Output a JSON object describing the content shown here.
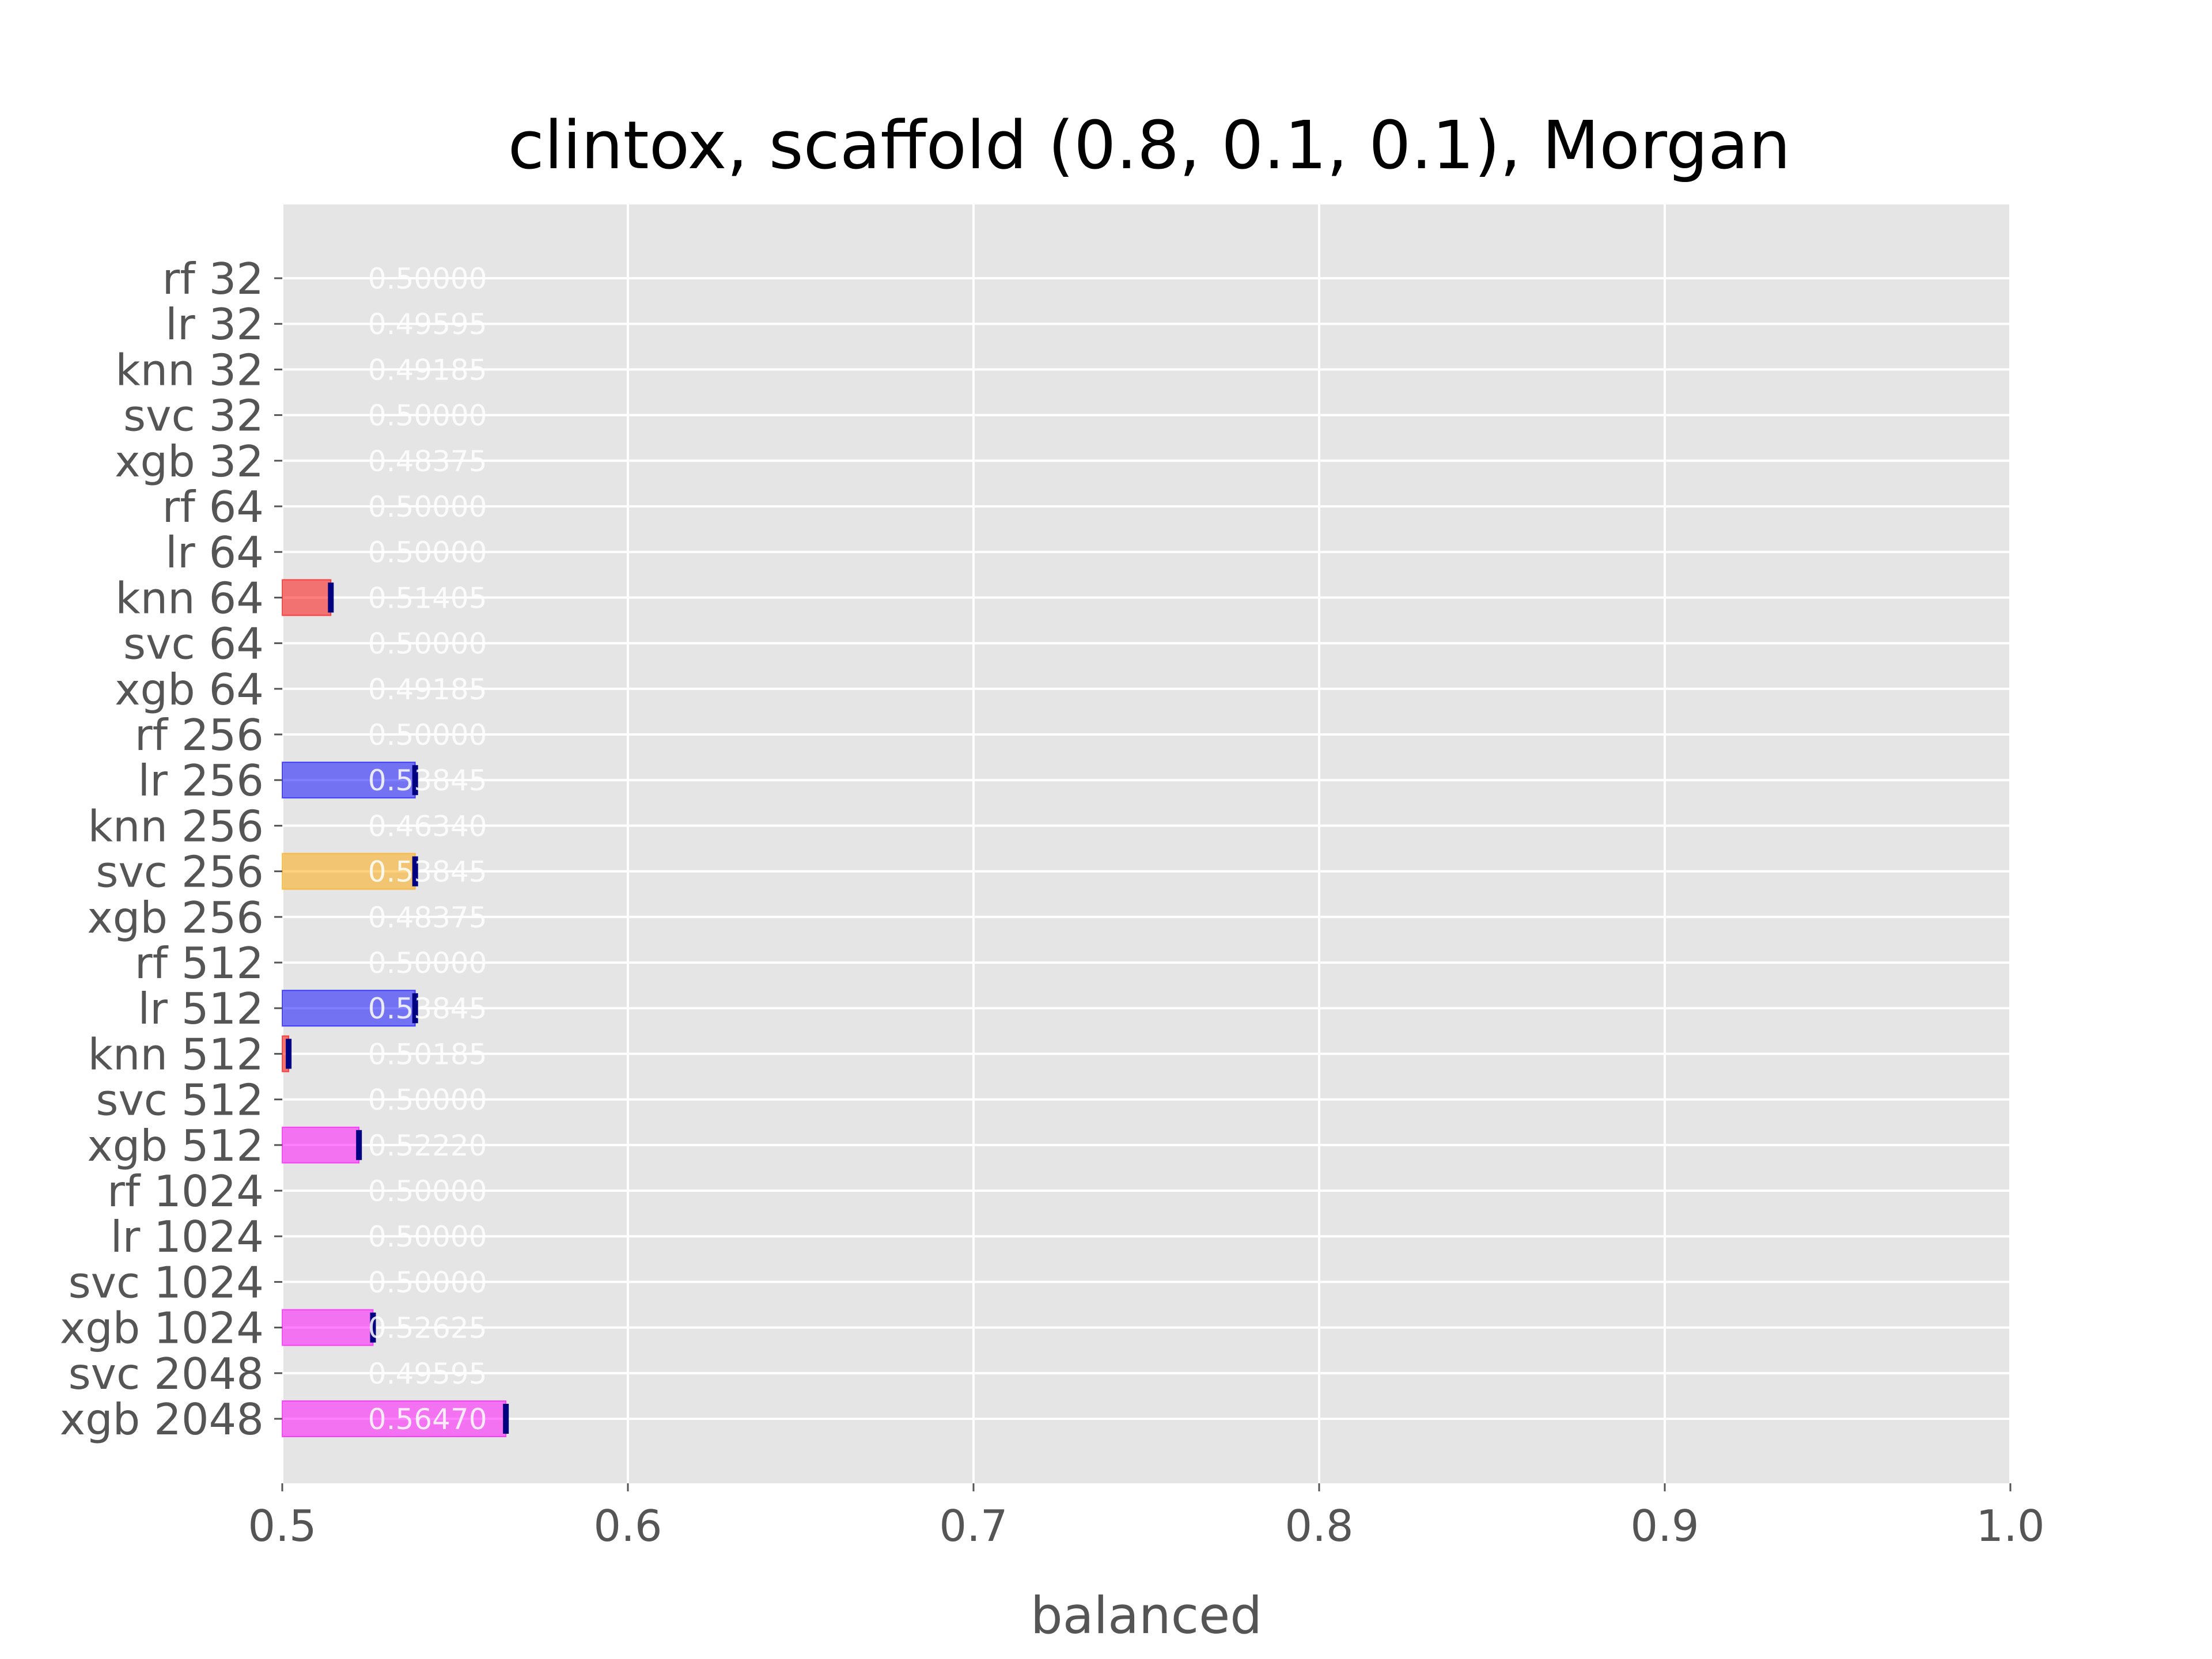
{
  "chart_data": {
    "type": "bar",
    "orientation": "horizontal",
    "title": "clintox, scaffold (0.8, 0.1, 0.1), Morgan",
    "xlabel": "balanced",
    "ylabel": "",
    "xlim": [
      0.5,
      1.0
    ],
    "xticks": [
      "0.5",
      "0.6",
      "0.7",
      "0.8",
      "0.9",
      "1.0"
    ],
    "grid": true,
    "categories": [
      "rf 32",
      "lr 32",
      "knn 32",
      "svc 32",
      "xgb 32",
      "rf 64",
      "lr 64",
      "knn 64",
      "svc 64",
      "xgb 64",
      "rf 256",
      "lr 256",
      "knn 256",
      "svc 256",
      "xgb 256",
      "rf 512",
      "lr 512",
      "knn 512",
      "svc 512",
      "xgb 512",
      "rf 1024",
      "lr 1024",
      "svc 1024",
      "xgb 1024",
      "svc 2048",
      "xgb 2048"
    ],
    "values": [
      0.5,
      0.49595,
      0.49185,
      0.5,
      0.48375,
      0.5,
      0.5,
      0.51405,
      0.5,
      0.49185,
      0.5,
      0.53845,
      0.4634,
      0.53845,
      0.48375,
      0.5,
      0.53845,
      0.50185,
      0.5,
      0.5222,
      0.5,
      0.5,
      0.5,
      0.52625,
      0.49595,
      0.5647
    ],
    "value_labels": [
      "0.50000",
      "0.49595",
      "0.49185",
      "0.50000",
      "0.48375",
      "0.50000",
      "0.50000",
      "0.51405",
      "0.50000",
      "0.49185",
      "0.50000",
      "0.53845",
      "0.46340",
      "0.53845",
      "0.48375",
      "0.50000",
      "0.53845",
      "0.50185",
      "0.50000",
      "0.52220",
      "0.50000",
      "0.50000",
      "0.50000",
      "0.52625",
      "0.49595",
      "0.56470"
    ],
    "model_colors": {
      "rf": "#2ca02c",
      "lr": "#0000ff",
      "knn": "#ff0000",
      "svc": "#ffa500",
      "xgb": "#ff00ff"
    },
    "error_bar_color": "#000080",
    "background_color": "#e5e5e5",
    "grid_color": "#ffffff"
  }
}
